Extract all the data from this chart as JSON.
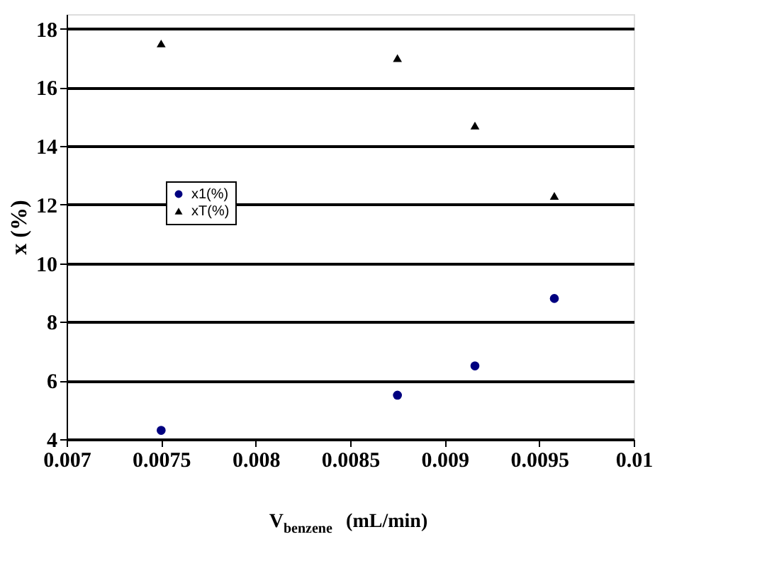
{
  "chart_data": {
    "type": "scatter",
    "xlabel": "V$_{benzene}$ (mL/min)",
    "ylabel": "x (%)",
    "xlim": [
      0.007,
      0.01
    ],
    "xticks": [
      0.007,
      0.0075,
      0.008,
      0.0085,
      0.009,
      0.0095,
      0.01
    ],
    "ylim": [
      4,
      18.5
    ],
    "yticks": [
      4,
      6,
      8,
      10,
      12,
      14,
      16,
      18
    ],
    "grid": "y",
    "legend": "left",
    "series": [
      {
        "name": "x1(%)",
        "color": "#000080",
        "marker": "circle",
        "x": [
          0.0075,
          0.00875,
          0.00916,
          0.00958
        ],
        "values": [
          4.3,
          5.5,
          6.5,
          8.8
        ]
      },
      {
        "name": "xT(%)",
        "color": "#000000",
        "marker": "triangle",
        "x": [
          0.0075,
          0.00875,
          0.00916,
          0.00958
        ],
        "values": [
          17.5,
          17.0,
          14.7,
          12.3
        ]
      }
    ]
  }
}
